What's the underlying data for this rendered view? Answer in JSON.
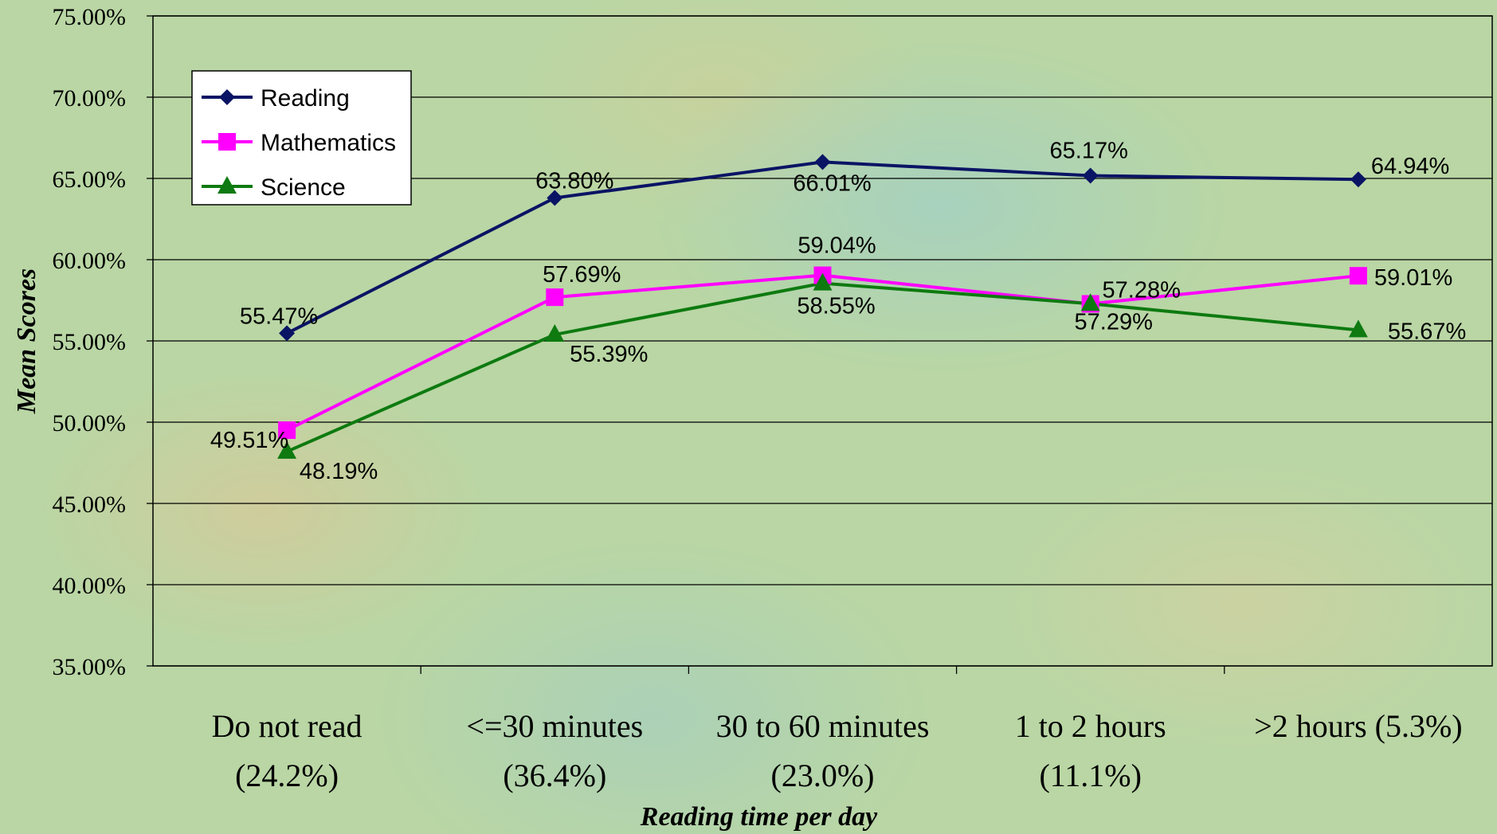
{
  "chart_data": {
    "type": "line",
    "title": "",
    "xlabel": "Reading time per day",
    "ylabel": "Mean Scores",
    "ylim": [
      35,
      75
    ],
    "y_ticks": [
      "35.00%",
      "40.00%",
      "45.00%",
      "50.00%",
      "55.00%",
      "60.00%",
      "65.00%",
      "70.00%",
      "75.00%"
    ],
    "categories": [
      [
        "Do not read",
        "(24.2%)"
      ],
      [
        "<=30 minutes",
        "(36.4%)"
      ],
      [
        "30 to 60 minutes",
        "(23.0%)"
      ],
      [
        "1 to 2 hours",
        "(11.1%)"
      ],
      [
        ">2 hours  (5.3%)"
      ]
    ],
    "grid": true,
    "legend_position": "top-left",
    "series": [
      {
        "name": "Reading",
        "color": "#0a1464",
        "marker": "diamond",
        "values": [
          55.47,
          63.8,
          66.01,
          65.17,
          64.94
        ],
        "labels": [
          "55.47%",
          "63.80%",
          "66.01%",
          "65.17%",
          "64.94%"
        ]
      },
      {
        "name": "Mathematics",
        "color": "#ff00ff",
        "marker": "square",
        "values": [
          49.51,
          57.69,
          59.04,
          57.28,
          59.01
        ],
        "labels": [
          "49.51%",
          "57.69%",
          "59.04%",
          "57.28%",
          "59.01%"
        ]
      },
      {
        "name": "Science",
        "color": "#0e7a10",
        "marker": "triangle",
        "values": [
          48.19,
          55.39,
          58.55,
          57.29,
          55.67
        ],
        "labels": [
          "48.19%",
          "55.39%",
          "58.55%",
          "57.29%",
          "55.67%"
        ]
      }
    ]
  }
}
